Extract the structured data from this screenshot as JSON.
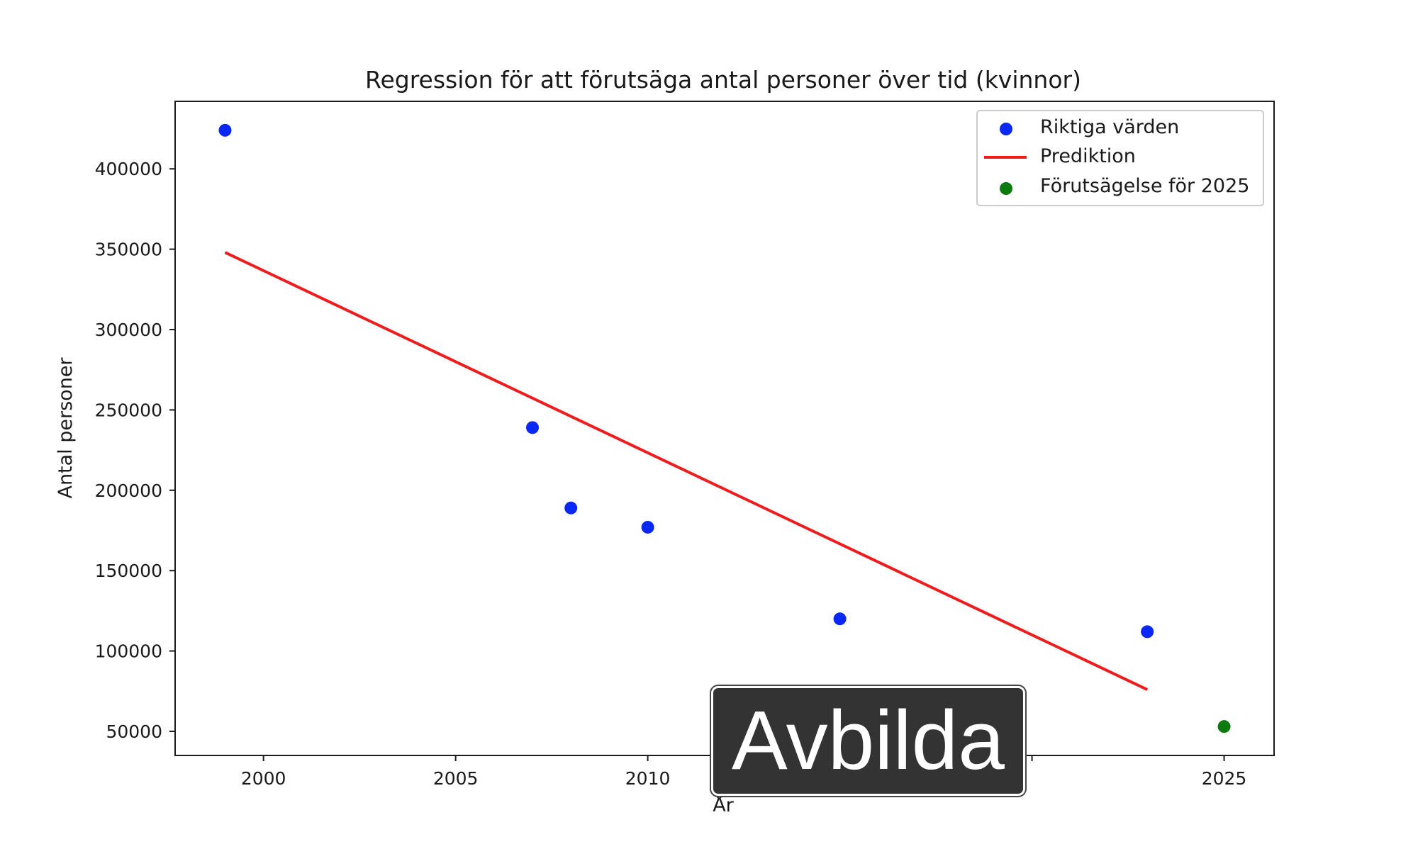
{
  "chart_data": {
    "type": "scatter",
    "title": "Regression för att förutsäga antal personer över tid (kvinnor)",
    "xlabel": "År",
    "ylabel": "Antal personer",
    "xlim": [
      1997.7,
      2026.3
    ],
    "ylim": [
      35000,
      442000
    ],
    "x_ticks": [
      2000,
      2005,
      2010,
      2015,
      2020,
      2025
    ],
    "x_tick_labels": [
      "2000",
      "2005",
      "2010",
      "",
      "",
      "2025"
    ],
    "y_ticks": [
      50000,
      100000,
      150000,
      200000,
      250000,
      300000,
      350000,
      400000
    ],
    "y_tick_labels": [
      "50000",
      "100000",
      "150000",
      "200000",
      "250000",
      "300000",
      "350000",
      "400000"
    ],
    "grid": false,
    "legend_position": "upper right",
    "series": [
      {
        "name": "Riktiga värden",
        "kind": "scatter",
        "color": "#0a28f5",
        "points": [
          {
            "x": 1999,
            "y": 424000
          },
          {
            "x": 2007,
            "y": 239000
          },
          {
            "x": 2008,
            "y": 189000
          },
          {
            "x": 2010,
            "y": 177000
          },
          {
            "x": 2015,
            "y": 120000
          },
          {
            "x": 2023,
            "y": 112000
          }
        ]
      },
      {
        "name": "Prediktion",
        "kind": "line",
        "color": "#ee1c1c",
        "points": [
          {
            "x": 1999,
            "y": 348000
          },
          {
            "x": 2023,
            "y": 76000
          }
        ]
      },
      {
        "name": "Förutsägelse för 2025",
        "kind": "scatter",
        "color": "#0c7a0c",
        "points": [
          {
            "x": 2025,
            "y": 53000
          }
        ]
      }
    ]
  },
  "overlay": {
    "button_label": "Avbilda"
  }
}
